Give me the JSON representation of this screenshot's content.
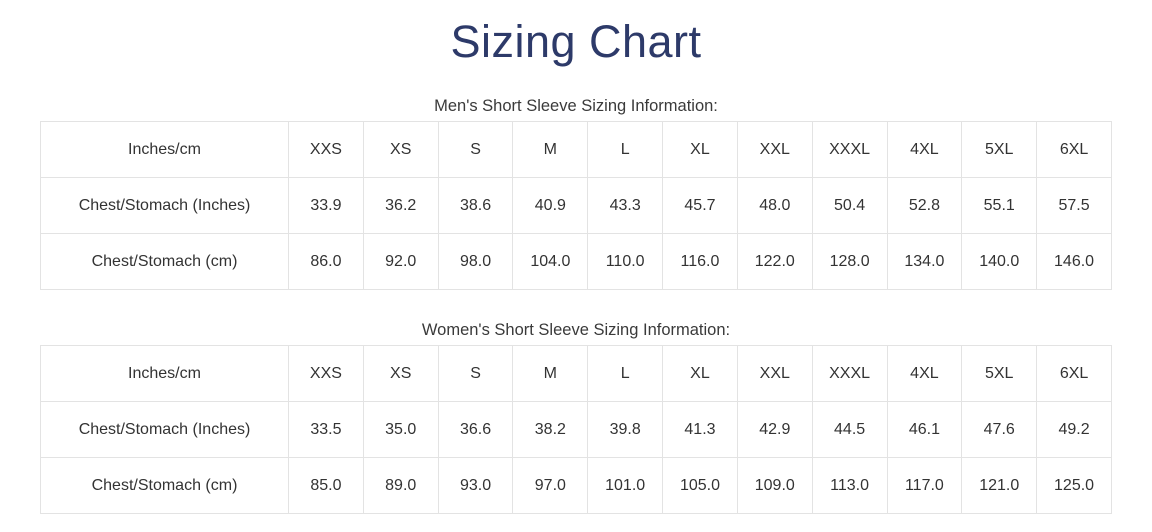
{
  "page": {
    "title": "Sizing Chart"
  },
  "colors": {
    "title_navy": "#2d3a69",
    "body_text": "#333333",
    "table_border": "#e3e3e3",
    "background": "#ffffff"
  },
  "tables": [
    {
      "subtitle": "Men's Short Sleeve Sizing Information:",
      "header": [
        "Inches/cm",
        "XXS",
        "XS",
        "S",
        "M",
        "L",
        "XL",
        "XXL",
        "XXXL",
        "4XL",
        "5XL",
        "6XL"
      ],
      "rows": [
        [
          "Chest/Stomach (Inches)",
          "33.9",
          "36.2",
          "38.6",
          "40.9",
          "43.3",
          "45.7",
          "48.0",
          "50.4",
          "52.8",
          "55.1",
          "57.5"
        ],
        [
          "Chest/Stomach (cm)",
          "86.0",
          "92.0",
          "98.0",
          "104.0",
          "110.0",
          "116.0",
          "122.0",
          "128.0",
          "134.0",
          "140.0",
          "146.0"
        ]
      ]
    },
    {
      "subtitle": "Women's Short Sleeve Sizing Information:",
      "header": [
        "Inches/cm",
        "XXS",
        "XS",
        "S",
        "M",
        "L",
        "XL",
        "XXL",
        "XXXL",
        "4XL",
        "5XL",
        "6XL"
      ],
      "rows": [
        [
          "Chest/Stomach (Inches)",
          "33.5",
          "35.0",
          "36.6",
          "38.2",
          "39.8",
          "41.3",
          "42.9",
          "44.5",
          "46.1",
          "47.6",
          "49.2"
        ],
        [
          "Chest/Stomach (cm)",
          "85.0",
          "89.0",
          "93.0",
          "97.0",
          "101.0",
          "105.0",
          "109.0",
          "113.0",
          "117.0",
          "121.0",
          "125.0"
        ]
      ]
    }
  ]
}
